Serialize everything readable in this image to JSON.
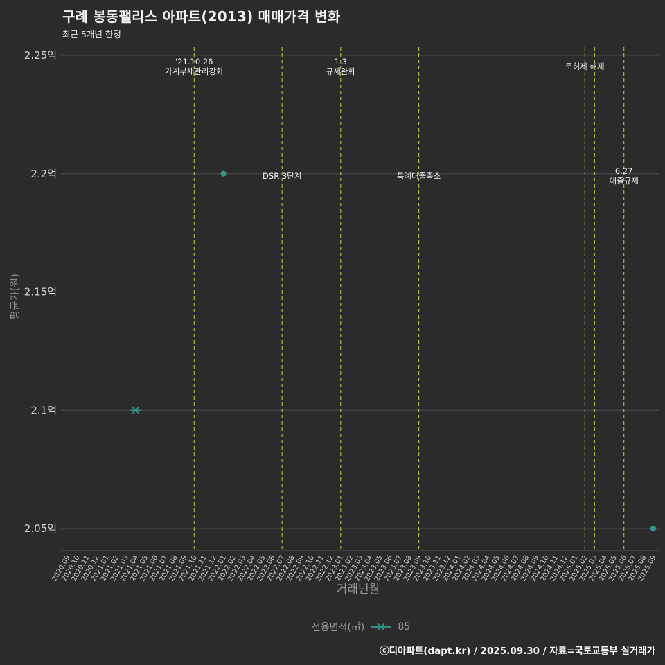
{
  "page": {
    "background": "#2b2b2b"
  },
  "header": {
    "title": "구례 봉동팰리스 아파트(2013) 매매가격 변화",
    "subtitle": "최근 5개년 한정"
  },
  "footer": {
    "credit": "ⓒ디아파트(dapt.kr) / 2025.09.30 / 자료=국토교통부 실거래가"
  },
  "legend": {
    "label": "전용면적(㎡)",
    "series_value": "85",
    "marker": "x-with-line",
    "color": "#35988e"
  },
  "chart_data": {
    "type": "scatter",
    "title": "구례 봉동팰리스 아파트(2013) 매매가격 변화",
    "subtitle": "최근 5개년 한정",
    "xlabel": "거래년월",
    "ylabel": "평균가(원)",
    "unit": "억",
    "ylim": [
      2.04,
      2.255
    ],
    "grid": "horizontal",
    "legend_position": "bottom-center",
    "colors": {
      "background": "#2b2b2b",
      "grid": "#4e4e4e",
      "axis": "#5a5a5a",
      "tick_label": "#d6d6d6",
      "x_tick_label": "#cfcfcf",
      "event_line": "#b5b042",
      "annotation": "#f0f0f0"
    },
    "y_ticks": [
      {
        "label": "2.25억",
        "value": 2.25
      },
      {
        "label": "2.2억",
        "value": 2.2
      },
      {
        "label": "2.15억",
        "value": 2.15
      },
      {
        "label": "2.1억",
        "value": 2.1
      },
      {
        "label": "2.05억",
        "value": 2.05
      }
    ],
    "x_categories": [
      "2020.09",
      "2020.10",
      "2020.11",
      "2020.12",
      "2021.01",
      "2021.02",
      "2021.03",
      "2021.04",
      "2021.05",
      "2021.06",
      "2021.07",
      "2021.08",
      "2021.09",
      "2021.10",
      "2021.11",
      "2021.12",
      "2022.01",
      "2022.02",
      "2022.03",
      "2022.04",
      "2022.05",
      "2022.06",
      "2022.07",
      "2022.08",
      "2022.09",
      "2022.10",
      "2022.11",
      "2022.12",
      "2023.01",
      "2023.02",
      "2023.03",
      "2023.04",
      "2023.05",
      "2023.06",
      "2023.07",
      "2023.08",
      "2023.09",
      "2023.10",
      "2023.11",
      "2023.12",
      "2024.01",
      "2024.02",
      "2024.03",
      "2024.04",
      "2024.05",
      "2024.06",
      "2024.07",
      "2024.08",
      "2024.09",
      "2024.10",
      "2024.11",
      "2024.12",
      "2025.01",
      "2025.02",
      "2025.03",
      "2025.04",
      "2025.05",
      "2025.06",
      "2025.07",
      "2025.08",
      "2025.09"
    ],
    "series": [
      {
        "name": "85",
        "color": "#35988e",
        "points": [
          {
            "x": "2021.04",
            "y": 2.1,
            "marker": "x"
          },
          {
            "x": "2022.01",
            "y": 2.2,
            "marker": "circle"
          },
          {
            "x": "2025.09",
            "y": 2.05,
            "marker": "circle"
          }
        ]
      }
    ],
    "event_lines": [
      {
        "x": "2021.10",
        "label_lines": [
          "'21.10.26",
          "가계부채관리강화"
        ],
        "label_pos": "top"
      },
      {
        "x": "2022.07",
        "label_lines": [
          "DSR 3단계"
        ],
        "label_pos": "mid"
      },
      {
        "x": "2023.01",
        "label_lines": [
          "1.3",
          "규제완화"
        ],
        "label_pos": "top"
      },
      {
        "x": "2023.09",
        "label_lines": [
          "특례대출축소"
        ],
        "label_pos": "mid"
      },
      {
        "x": "2025.02",
        "label_lines": [
          "토허제 해제"
        ],
        "label_pos": "top"
      },
      {
        "x": "2025.03",
        "label_lines": [],
        "label_pos": "top"
      },
      {
        "x": "2025.06",
        "label_lines": [
          "6.27",
          "대출규제"
        ],
        "label_pos": "mid"
      }
    ]
  }
}
